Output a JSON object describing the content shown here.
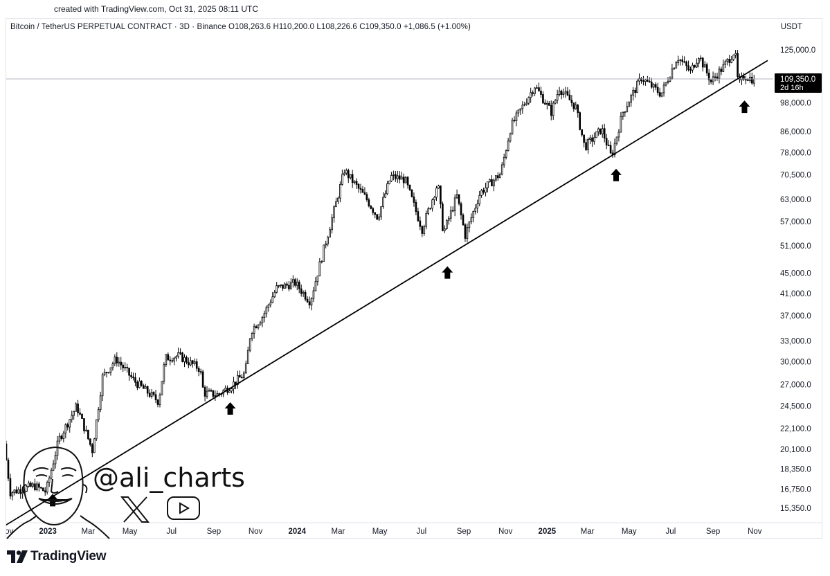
{
  "header": {
    "created_text": "created with TradingView.com, Oct 31, 2025 08:11 UTC"
  },
  "legend": {
    "text": "Bitcoin / TetherUS PERPETUAL CONTRACT · 3D · Binance  O108,263.6  H110,200.0  L108,226.6  C109,350.0  +1,086.5 (+1.00%)"
  },
  "currency": "USDT",
  "watermark": {
    "handle": "@ali_charts",
    "icons": [
      "x-logo-icon",
      "youtube-icon"
    ],
    "avatar": "bald-smiling-man-sketch"
  },
  "footer": {
    "brand": "TradingView",
    "logo": "tradingview-logo-icon"
  },
  "colors": {
    "candle": "#000000",
    "trendline": "#000000",
    "price_tag_bg": "#000000",
    "price_line": "#b2b5be"
  },
  "chart_data": {
    "type": "candlestick",
    "y_scale": "log",
    "ylim": [
      14500,
      131000
    ],
    "y_ticks": [
      125000,
      98000,
      86000,
      78000,
      70500,
      63000,
      57000,
      51000,
      45000,
      41000,
      37000,
      33000,
      30000,
      27000,
      24500,
      22100,
      20100,
      18350,
      16750,
      15350
    ],
    "y_tick_labels": [
      "125,000.0",
      "98,000.0",
      "86,000.0",
      "78,000.0",
      "70,500.0",
      "63,000.0",
      "57,000.0",
      "51,000.0",
      "45,000.0",
      "41,000.0",
      "37,000.0",
      "33,000.0",
      "30,000.0",
      "27,000.0",
      "24,500.0",
      "22,100.0",
      "20,100.0",
      "18,350.0",
      "16,750.0",
      "15,350.0"
    ],
    "x_range": [
      "2022-11-01",
      "2025-11-20"
    ],
    "x_ticks": [
      {
        "date": "2022-11-01",
        "label": "Nov",
        "bold": false
      },
      {
        "date": "2023-01-01",
        "label": "2023",
        "bold": true
      },
      {
        "date": "2023-03-01",
        "label": "Mar",
        "bold": false
      },
      {
        "date": "2023-05-01",
        "label": "May",
        "bold": false
      },
      {
        "date": "2023-07-01",
        "label": "Jul",
        "bold": false
      },
      {
        "date": "2023-09-01",
        "label": "Sep",
        "bold": false
      },
      {
        "date": "2023-11-01",
        "label": "Nov",
        "bold": false
      },
      {
        "date": "2024-01-01",
        "label": "2024",
        "bold": true
      },
      {
        "date": "2024-03-01",
        "label": "Mar",
        "bold": false
      },
      {
        "date": "2024-05-01",
        "label": "May",
        "bold": false
      },
      {
        "date": "2024-07-01",
        "label": "Jul",
        "bold": false
      },
      {
        "date": "2024-09-01",
        "label": "Sep",
        "bold": false
      },
      {
        "date": "2024-11-01",
        "label": "Nov",
        "bold": false
      },
      {
        "date": "2025-01-01",
        "label": "2025",
        "bold": true
      },
      {
        "date": "2025-03-01",
        "label": "Mar",
        "bold": false
      },
      {
        "date": "2025-05-01",
        "label": "May",
        "bold": false
      },
      {
        "date": "2025-07-01",
        "label": "Jul",
        "bold": false
      },
      {
        "date": "2025-09-01",
        "label": "Sep",
        "bold": false
      },
      {
        "date": "2025-11-01",
        "label": "Nov",
        "bold": false
      }
    ],
    "price_path": [
      [
        "2022-11-01",
        20600
      ],
      [
        "2022-11-10",
        16500
      ],
      [
        "2022-12-15",
        17000
      ],
      [
        "2023-01-01",
        16550
      ],
      [
        "2023-01-20",
        21000
      ],
      [
        "2023-02-15",
        24500
      ],
      [
        "2023-03-10",
        20000
      ],
      [
        "2023-03-25",
        28000
      ],
      [
        "2023-04-14",
        30400
      ],
      [
        "2023-05-10",
        27500
      ],
      [
        "2023-06-15",
        25000
      ],
      [
        "2023-06-25",
        30500
      ],
      [
        "2023-07-15",
        30800
      ],
      [
        "2023-08-15",
        29000
      ],
      [
        "2023-08-20",
        26000
      ],
      [
        "2023-09-10",
        25800
      ],
      [
        "2023-10-01",
        27000
      ],
      [
        "2023-10-20",
        28500
      ],
      [
        "2023-10-28",
        34500
      ],
      [
        "2023-11-15",
        37000
      ],
      [
        "2023-12-05",
        42000
      ],
      [
        "2024-01-01",
        43000
      ],
      [
        "2024-01-23",
        39500
      ],
      [
        "2024-02-15",
        52000
      ],
      [
        "2024-03-01",
        62000
      ],
      [
        "2024-03-13",
        72000
      ],
      [
        "2024-04-15",
        63000
      ],
      [
        "2024-05-01",
        58000
      ],
      [
        "2024-05-20",
        70000
      ],
      [
        "2024-06-10",
        69000
      ],
      [
        "2024-07-05",
        55000
      ],
      [
        "2024-07-28",
        68000
      ],
      [
        "2024-08-05",
        54000
      ],
      [
        "2024-08-25",
        64000
      ],
      [
        "2024-09-06",
        53500
      ],
      [
        "2024-09-28",
        65000
      ],
      [
        "2024-10-28",
        71000
      ],
      [
        "2024-11-12",
        88000
      ],
      [
        "2024-12-17",
        106000
      ],
      [
        "2025-01-10",
        94000
      ],
      [
        "2025-01-22",
        105000
      ],
      [
        "2025-02-15",
        96000
      ],
      [
        "2025-02-28",
        80000
      ],
      [
        "2025-03-25",
        87000
      ],
      [
        "2025-04-08",
        76500
      ],
      [
        "2025-04-25",
        94000
      ],
      [
        "2025-05-22",
        110000
      ],
      [
        "2025-06-20",
        102000
      ],
      [
        "2025-07-14",
        121000
      ],
      [
        "2025-08-02",
        113000
      ],
      [
        "2025-08-14",
        122000
      ],
      [
        "2025-09-01",
        108000
      ],
      [
        "2025-09-20",
        116000
      ],
      [
        "2025-10-06",
        124500
      ],
      [
        "2025-10-11",
        106000
      ],
      [
        "2025-10-20",
        111000
      ],
      [
        "2025-10-31",
        109350
      ]
    ],
    "current_price": {
      "label": "109,350.0",
      "countdown": "2d 16h",
      "value": 109350
    },
    "trendline": {
      "from": [
        "2022-10-20",
        13900
      ],
      "to": [
        "2025-11-20",
        119000
      ]
    },
    "arrows": [
      {
        "date": "2023-01-08",
        "value": 16700
      },
      {
        "date": "2023-09-25",
        "value": 25400
      },
      {
        "date": "2024-08-08",
        "value": 47300
      },
      {
        "date": "2025-04-12",
        "value": 73900
      },
      {
        "date": "2025-10-17",
        "value": 101000
      }
    ]
  }
}
